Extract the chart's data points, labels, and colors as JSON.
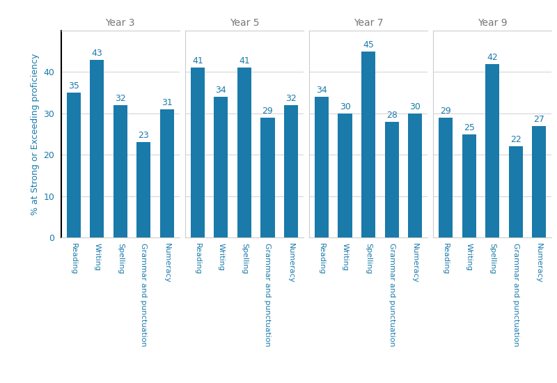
{
  "groups": [
    "Year 3",
    "Year 5",
    "Year 7",
    "Year 9"
  ],
  "categories": [
    "Reading",
    "Writing",
    "Spelling",
    "Grammar and punctuation",
    "Numeracy"
  ],
  "values": {
    "Year 3": [
      35,
      43,
      32,
      23,
      31
    ],
    "Year 5": [
      41,
      34,
      41,
      29,
      32
    ],
    "Year 7": [
      34,
      30,
      45,
      28,
      30
    ],
    "Year 9": [
      29,
      25,
      42,
      22,
      27
    ]
  },
  "bar_color": "#1a7aaa",
  "ylabel": "% at Strong or Exceeding proficiency",
  "ylim": [
    0,
    50
  ],
  "yticks": [
    0,
    10,
    20,
    30,
    40
  ],
  "background_color": "#ffffff",
  "grid_color": "#d0d0d0",
  "text_color": "#1a7aaa",
  "group_label_color": "#777777",
  "bar_width": 0.6,
  "group_title_fontsize": 10,
  "value_label_fontsize": 9,
  "ylabel_fontsize": 9,
  "tick_label_fontsize": 8,
  "ytick_fontsize": 9
}
